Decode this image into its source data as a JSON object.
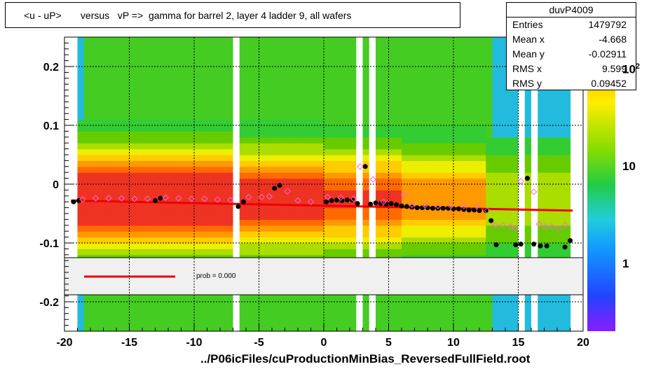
{
  "title": "<u - uP>       versus   vP =>  gamma for barrel 2, layer 4 ladder 9, all wafers",
  "stats": {
    "name": "duvP4009",
    "rows": [
      {
        "key": "Entries",
        "value": "1479792"
      },
      {
        "key": "Mean x",
        "value": "-4.668"
      },
      {
        "key": "Mean y",
        "value": "-0.02911"
      },
      {
        "key": "RMS x",
        "value": "9.599"
      },
      {
        "key": "RMS y",
        "value": "0.09452"
      }
    ]
  },
  "footer": "../P06icFiles/cuProductionMinBias_ReversedFullField.root",
  "legend": {
    "fit_label": "prob = 0.000",
    "fit_color": "#ee0000"
  },
  "colorbar": {
    "scale": "log",
    "labels": [
      "1",
      "10",
      "10"
    ],
    "exponent": "2"
  },
  "colors": {
    "red": "#ee3322",
    "orange": "#ff8800",
    "yellow": "#ffdd00",
    "green": "#55cc00",
    "cyan": "#22ccdd",
    "blue": "#1166ff",
    "marker_black": "#000000",
    "marker_pink": "#ff66cc"
  },
  "chart_data": {
    "type": "heatmap",
    "title": "<u - uP>       versus   vP =>  gamma for barrel 2, layer 4 ladder 9, all wafers",
    "xlim": [
      -20,
      20
    ],
    "ylim": [
      -0.25,
      0.25
    ],
    "x_ticks": [
      -20,
      -15,
      -10,
      -5,
      0,
      5,
      10,
      15,
      20
    ],
    "y_ticks": [
      -0.2,
      -0.1,
      0,
      0.1,
      0.2
    ],
    "x_tick_labels": [
      "-20",
      "-15",
      "-10",
      "-5",
      "0",
      "5",
      "10",
      "15",
      "20"
    ],
    "y_tick_labels": [
      "-0.2",
      "-0.1",
      "0",
      "0.1",
      "0.2"
    ],
    "grid": true,
    "series": [
      {
        "marker": "filled-circle",
        "points": [
          [
            -19.3,
            -0.03
          ],
          [
            -18.9,
            -0.028
          ],
          [
            -13.0,
            -0.028
          ],
          [
            -12.6,
            -0.024
          ],
          [
            -6.6,
            -0.038
          ],
          [
            -6.2,
            -0.03
          ],
          [
            -3.8,
            -0.007
          ],
          [
            -3.4,
            -0.002
          ],
          [
            0.2,
            -0.03
          ],
          [
            0.6,
            -0.028
          ],
          [
            1.0,
            -0.027
          ],
          [
            1.4,
            -0.028
          ],
          [
            1.8,
            -0.027
          ],
          [
            2.2,
            -0.027
          ],
          [
            2.6,
            -0.033
          ],
          [
            3.2,
            0.03
          ],
          [
            3.6,
            -0.034
          ],
          [
            4.0,
            -0.032
          ],
          [
            4.4,
            -0.033
          ],
          [
            4.8,
            -0.034
          ],
          [
            5.2,
            -0.033
          ],
          [
            5.6,
            -0.035
          ],
          [
            6.0,
            -0.037
          ],
          [
            6.4,
            -0.038
          ],
          [
            6.8,
            -0.039
          ],
          [
            7.2,
            -0.04
          ],
          [
            7.6,
            -0.04
          ],
          [
            8.0,
            -0.04
          ],
          [
            8.4,
            -0.041
          ],
          [
            8.8,
            -0.041
          ],
          [
            9.2,
            -0.041
          ],
          [
            9.6,
            -0.041
          ],
          [
            10.0,
            -0.042
          ],
          [
            10.4,
            -0.042
          ],
          [
            10.8,
            -0.043
          ],
          [
            11.2,
            -0.044
          ],
          [
            11.6,
            -0.044
          ],
          [
            12.0,
            -0.045
          ],
          [
            12.5,
            -0.045
          ],
          [
            12.9,
            -0.062
          ],
          [
            13.3,
            -0.103
          ],
          [
            14.8,
            -0.103
          ],
          [
            15.2,
            -0.102
          ],
          [
            15.7,
            0.01
          ],
          [
            16.2,
            -0.102
          ],
          [
            16.7,
            -0.105
          ],
          [
            17.2,
            -0.105
          ],
          [
            18.6,
            -0.107
          ],
          [
            19.0,
            -0.096
          ]
        ]
      },
      {
        "marker": "open-diamond",
        "points": [
          [
            -18.6,
            -0.026
          ],
          [
            -17.6,
            -0.024
          ],
          [
            -16.6,
            -0.024
          ],
          [
            -15.6,
            -0.024
          ],
          [
            -14.6,
            -0.025
          ],
          [
            -13.6,
            -0.025
          ],
          [
            -12.2,
            -0.023
          ],
          [
            -11.2,
            -0.024
          ],
          [
            -10.2,
            -0.025
          ],
          [
            -9.2,
            -0.025
          ],
          [
            -8.2,
            -0.026
          ],
          [
            -7.2,
            -0.027
          ],
          [
            -5.8,
            -0.022
          ],
          [
            -4.8,
            -0.022
          ],
          [
            -4.2,
            -0.021
          ],
          [
            -2.8,
            -0.012
          ],
          [
            -2.0,
            -0.028
          ],
          [
            -1.0,
            -0.03
          ],
          [
            0.3,
            -0.022
          ],
          [
            1.3,
            -0.023
          ],
          [
            2.3,
            -0.025
          ],
          [
            2.8,
            0.03
          ],
          [
            3.8,
            0.008
          ],
          [
            4.6,
            -0.03
          ],
          [
            6.2,
            -0.018
          ],
          [
            6.8,
            -0.035
          ],
          [
            7.8,
            -0.036
          ],
          [
            8.8,
            -0.037
          ],
          [
            9.8,
            -0.037
          ],
          [
            10.8,
            -0.037
          ],
          [
            11.8,
            -0.038
          ],
          [
            12.6,
            -0.045
          ],
          [
            13.2,
            -0.07
          ],
          [
            13.8,
            -0.07
          ],
          [
            14.4,
            -0.072
          ],
          [
            14.8,
            -0.075
          ],
          [
            15.2,
            0.005
          ],
          [
            16.2,
            -0.013
          ],
          [
            16.6,
            -0.068
          ],
          [
            17.1,
            -0.072
          ],
          [
            17.6,
            -0.072
          ],
          [
            18.1,
            -0.075
          ],
          [
            18.6,
            -0.07
          ]
        ]
      }
    ],
    "fit_line": {
      "x": [
        -19.5,
        19.2
      ],
      "y": [
        -0.028,
        -0.045
      ]
    }
  }
}
